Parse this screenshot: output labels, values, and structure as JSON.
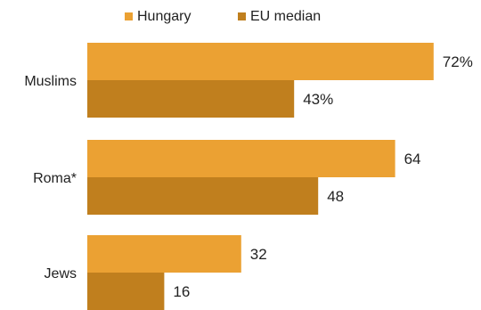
{
  "chart_data": {
    "type": "bar",
    "orientation": "horizontal",
    "categories": [
      "Muslims",
      "Roma*",
      "Jews"
    ],
    "series": [
      {
        "name": "Hungary",
        "values": [
          72,
          64,
          32
        ],
        "labels": [
          "72%",
          "64",
          "32"
        ],
        "color": "#EBA133"
      },
      {
        "name": "EU median",
        "values": [
          43,
          48,
          16
        ],
        "labels": [
          "43%",
          "48",
          "16"
        ],
        "color": "#C07F1E"
      }
    ],
    "xlim": [
      0,
      100
    ],
    "grid": false,
    "legend": "top"
  }
}
